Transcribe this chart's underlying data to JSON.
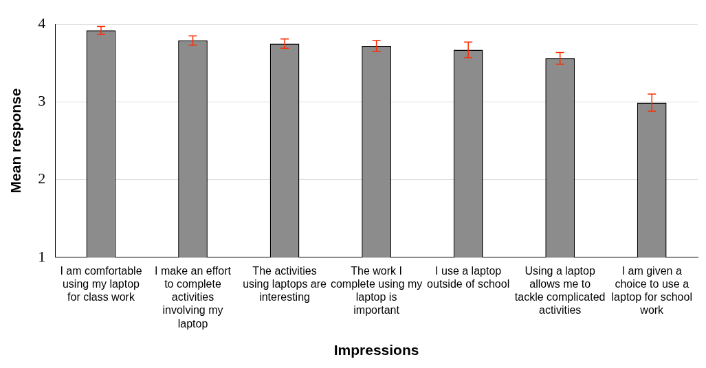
{
  "chart_data": {
    "type": "bar",
    "xlabel": "Impressions",
    "ylabel": "Mean response",
    "categories": [
      "I am comfortable using my laptop for class work",
      "I make an effort to complete activities involving my laptop",
      "The activities using laptops are interesting",
      "The work I complete using my laptop is important",
      "I use a laptop outside of school",
      "Using a laptop allows me to tackle complicated activities",
      "I am given a choice to use a laptop for school work"
    ],
    "values": [
      3.92,
      3.79,
      3.75,
      3.72,
      3.67,
      3.56,
      2.99
    ],
    "errors": [
      0.05,
      0.06,
      0.06,
      0.07,
      0.1,
      0.075,
      0.11
    ],
    "color": "#8c8c8c",
    "ylim": [
      1,
      4
    ],
    "yticks": [
      1,
      2,
      3,
      4
    ],
    "grid": "y",
    "legend": false
  }
}
